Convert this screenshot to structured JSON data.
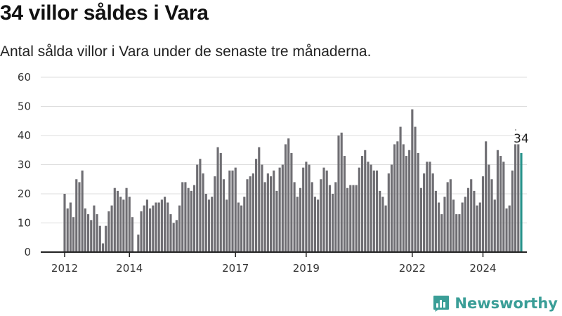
{
  "title": "34 villor såldes i Vara",
  "subtitle": "Antal sålda villor i Vara under de senaste tre månaderna.",
  "brand": {
    "name": "Newsworthy",
    "icon": "newsworthy-logo-icon",
    "color": "#3a9e97"
  },
  "chart_data": {
    "type": "bar",
    "title": "34 villor såldes i Vara",
    "subtitle": "Antal sålda villor i Vara under de senaste tre månaderna.",
    "ylim": [
      0,
      60
    ],
    "yticks": [
      0,
      10,
      20,
      30,
      40,
      50,
      60
    ],
    "xticks": [
      "2012",
      "2014",
      "2017",
      "2019",
      "2022",
      "2024"
    ],
    "grid": true,
    "bar_color": "#6f6e73",
    "highlight_color": "#27928a",
    "start": "2012-03",
    "values": [
      20,
      15,
      17,
      12,
      25,
      24,
      28,
      15,
      13,
      11,
      16,
      13,
      9,
      3,
      9,
      14,
      16,
      22,
      21,
      19,
      18,
      22,
      19,
      12,
      null,
      6,
      14,
      16,
      18,
      15,
      16,
      17,
      17,
      18,
      19,
      17,
      13,
      10,
      11,
      16,
      24,
      24,
      22,
      21,
      23,
      30,
      32,
      27,
      20,
      18,
      19,
      26,
      36,
      34,
      25,
      18,
      28,
      28,
      29,
      17,
      16,
      19,
      25,
      26,
      27,
      32,
      36,
      30,
      24,
      27,
      26,
      28,
      21,
      29,
      30,
      37,
      39,
      34,
      24,
      19,
      22,
      29,
      31,
      30,
      24,
      19,
      18,
      25,
      29,
      28,
      23,
      20,
      24,
      40,
      41,
      33,
      22,
      23,
      23,
      23,
      29,
      33,
      35,
      31,
      30,
      28,
      28,
      21,
      19,
      16,
      27,
      30,
      37,
      38,
      43,
      37,
      33,
      35,
      49,
      43,
      34,
      22,
      27,
      31,
      31,
      27,
      21,
      17,
      13,
      19,
      24,
      25,
      18,
      13,
      13,
      17,
      19,
      22,
      25,
      21,
      16,
      17,
      26,
      38,
      30,
      25,
      18,
      35,
      33,
      31,
      15,
      16,
      28,
      37,
      37,
      34
    ],
    "last_value_label": "34"
  }
}
